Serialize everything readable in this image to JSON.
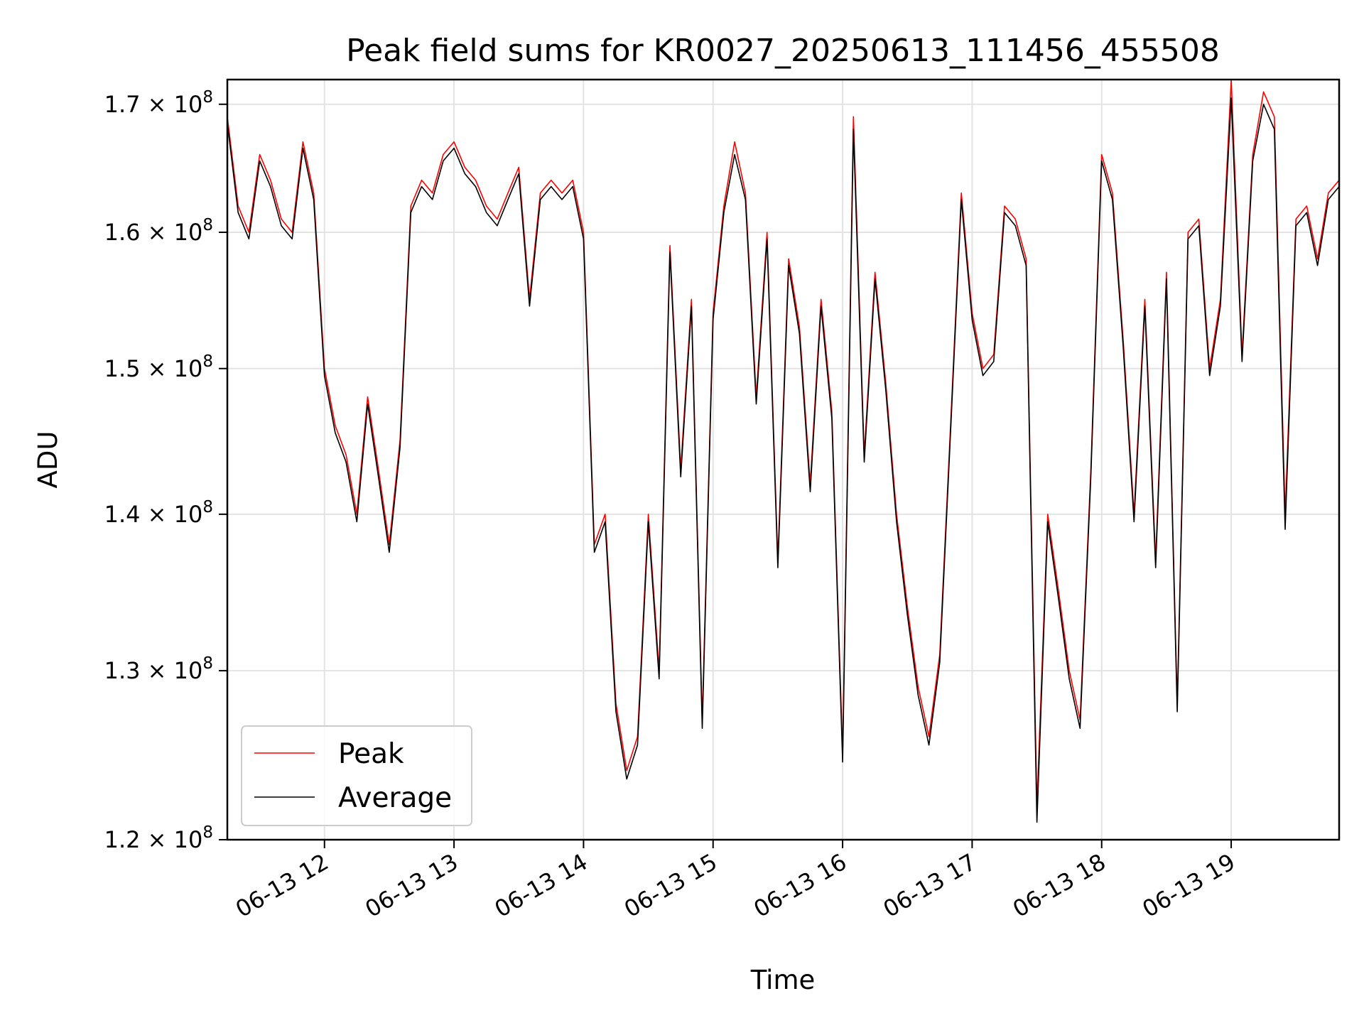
{
  "chart_data": {
    "type": "line",
    "title": "Peak field sums for KR0027_20250613_111456_455508",
    "xlabel": "Time",
    "ylabel": "ADU",
    "y_scale": "log",
    "xlim": [
      "2025-06-13 11:15",
      "2025-06-13 19:50"
    ],
    "ylim": [
      120000000,
      172000000
    ],
    "grid": true,
    "legend_position": "lower-left",
    "x_tick_labels": [
      "06-13 12",
      "06-13 13",
      "06-13 14",
      "06-13 15",
      "06-13 16",
      "06-13 17",
      "06-13 18",
      "06-13 19"
    ],
    "y_tick_values": [
      120000000,
      130000000,
      140000000,
      150000000,
      160000000,
      170000000
    ],
    "y_tick_mantissas": [
      "1.2",
      "1.3",
      "1.4",
      "1.5",
      "1.6",
      "1.7"
    ],
    "y_tick_exponent": "8",
    "x": [
      "11:15",
      "11:20",
      "11:25",
      "11:30",
      "11:35",
      "11:40",
      "11:45",
      "11:50",
      "11:55",
      "12:00",
      "12:05",
      "12:10",
      "12:15",
      "12:20",
      "12:25",
      "12:30",
      "12:35",
      "12:40",
      "12:45",
      "12:50",
      "12:55",
      "13:00",
      "13:05",
      "13:10",
      "13:15",
      "13:20",
      "13:25",
      "13:30",
      "13:35",
      "13:40",
      "13:45",
      "13:50",
      "13:55",
      "14:00",
      "14:05",
      "14:10",
      "14:15",
      "14:20",
      "14:25",
      "14:30",
      "14:35",
      "14:40",
      "14:45",
      "14:50",
      "14:55",
      "15:00",
      "15:05",
      "15:10",
      "15:15",
      "15:20",
      "15:25",
      "15:30",
      "15:35",
      "15:40",
      "15:45",
      "15:50",
      "15:55",
      "16:00",
      "16:05",
      "16:10",
      "16:15",
      "16:20",
      "16:25",
      "16:30",
      "16:35",
      "16:40",
      "16:45",
      "16:50",
      "16:55",
      "17:00",
      "17:05",
      "17:10",
      "17:15",
      "17:20",
      "17:25",
      "17:30",
      "17:35",
      "17:40",
      "17:45",
      "17:50",
      "17:55",
      "18:00",
      "18:05",
      "18:10",
      "18:15",
      "18:20",
      "18:25",
      "18:30",
      "18:35",
      "18:40",
      "18:45",
      "18:50",
      "18:55",
      "19:00",
      "19:05",
      "19:10",
      "19:15",
      "19:20",
      "19:25",
      "19:30",
      "19:35",
      "19:40",
      "19:45",
      "19:50"
    ],
    "series": [
      {
        "name": "Peak",
        "color": "#ff0000",
        "values": [
          169000000,
          162000000,
          160000000,
          166000000,
          164000000,
          161000000,
          160000000,
          167000000,
          163000000,
          150000000,
          146000000,
          144000000,
          140000000,
          148000000,
          143000000,
          138000000,
          145000000,
          162000000,
          164000000,
          163000000,
          166000000,
          167000000,
          165000000,
          164000000,
          162000000,
          161000000,
          163000000,
          165000000,
          155000000,
          163000000,
          164000000,
          163000000,
          164000000,
          160000000,
          138000000,
          140000000,
          128000000,
          124000000,
          126000000,
          140000000,
          130000000,
          159000000,
          143000000,
          155000000,
          127000000,
          154000000,
          162000000,
          167000000,
          163000000,
          148000000,
          160000000,
          137000000,
          158000000,
          153000000,
          142000000,
          155000000,
          147000000,
          125000000,
          169000000,
          144000000,
          157000000,
          149000000,
          140000000,
          134000000,
          129000000,
          126000000,
          131000000,
          146000000,
          163000000,
          154000000,
          150000000,
          151000000,
          162000000,
          161000000,
          158000000,
          122000000,
          140000000,
          135000000,
          130000000,
          127000000,
          143000000,
          166000000,
          163000000,
          152000000,
          140000000,
          155000000,
          137000000,
          157000000,
          128000000,
          160000000,
          161000000,
          150000000,
          155000000,
          172000000,
          151000000,
          166000000,
          171000000,
          169000000,
          140000000,
          161000000,
          162000000,
          158000000,
          163000000,
          164000000
        ]
      },
      {
        "name": "Average",
        "color": "#000000",
        "values": [
          168500000,
          161500000,
          159500000,
          165500000,
          163500000,
          160500000,
          159500000,
          166500000,
          162500000,
          149500000,
          145500000,
          143500000,
          139500000,
          147500000,
          142500000,
          137500000,
          144500000,
          161500000,
          163500000,
          162500000,
          165500000,
          166500000,
          164500000,
          163500000,
          161500000,
          160500000,
          162500000,
          164500000,
          154500000,
          162500000,
          163500000,
          162500000,
          163500000,
          159500000,
          137500000,
          139500000,
          127500000,
          123500000,
          125500000,
          139500000,
          129500000,
          158500000,
          142500000,
          154500000,
          126500000,
          153500000,
          161500000,
          166000000,
          162500000,
          147500000,
          159500000,
          136500000,
          157500000,
          152500000,
          141500000,
          154500000,
          146500000,
          124500000,
          168000000,
          143500000,
          156500000,
          148500000,
          139500000,
          133500000,
          128500000,
          125500000,
          130500000,
          145500000,
          162500000,
          153500000,
          149500000,
          150500000,
          161500000,
          160500000,
          157500000,
          121000000,
          139500000,
          134500000,
          129500000,
          126500000,
          142500000,
          165500000,
          162500000,
          151500000,
          139500000,
          154500000,
          136500000,
          156500000,
          127500000,
          159500000,
          160500000,
          149500000,
          154500000,
          170500000,
          150500000,
          165500000,
          170000000,
          168000000,
          139000000,
          160500000,
          161500000,
          157500000,
          162500000,
          163500000
        ]
      }
    ]
  }
}
